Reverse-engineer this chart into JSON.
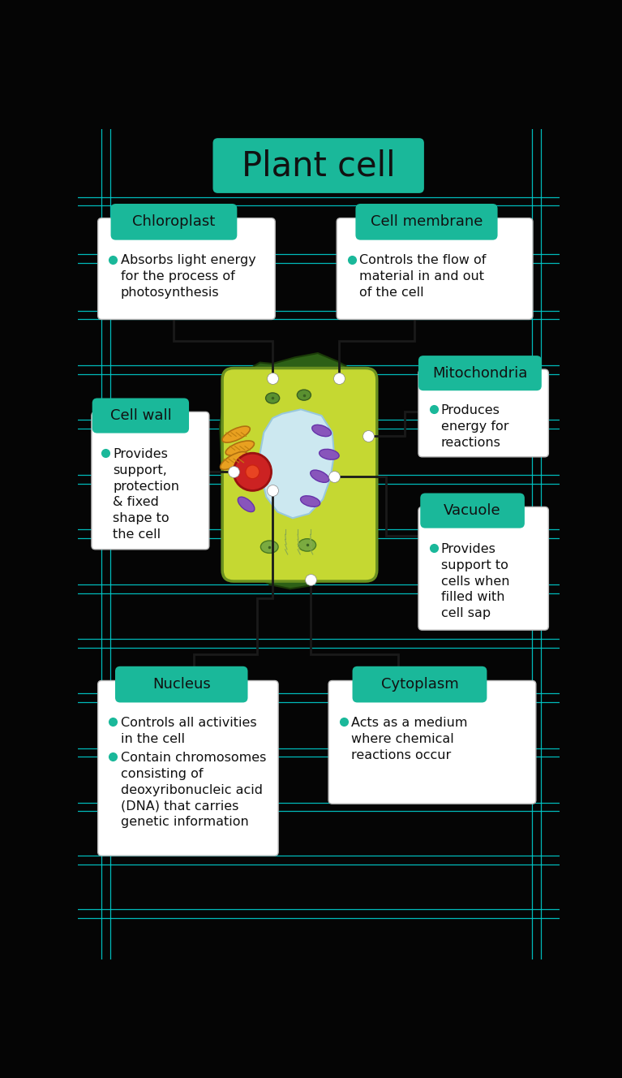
{
  "title": "Plant cell",
  "bg_color": "#050505",
  "teal_color": "#1ab89a",
  "white_box_color": "#ffffff",
  "line_color": "#111111",
  "grid_line_color": "#00cfcf",
  "text_dark": "#111111",
  "bullet_color": "#1ab89a",
  "labels": {
    "chloroplast": {
      "title": "Chloroplast",
      "bullet": "Absorbs light energy\nfor the process of\nphotosynthesis"
    },
    "cell_membrane": {
      "title": "Cell membrane",
      "bullet": "Controls the flow of\nmaterial in and out\nof the cell"
    },
    "mitochondria": {
      "title": "Mitochondria",
      "bullet": "Produces\nenergy for\nreactions"
    },
    "cell_wall": {
      "title": "Cell wall",
      "bullet": "Provides\nsupport,\nprotection\n& fixed\nshape to\nthe cell"
    },
    "vacuole": {
      "title": "Vacuole",
      "bullet": "Provides\nsupport to\ncells when\nfilled with\ncell sap"
    },
    "nucleus": {
      "title": "Nucleus",
      "bullet1": "Controls all activities\nin the cell",
      "bullet2": "Contain chromosomes\nconsisting of\ndeoxyribonucleic acid\n(DNA) that carries\ngenetic information"
    },
    "cytoplasm": {
      "title": "Cytoplasm",
      "bullet": "Acts as a medium\nwhere chemical\nreactions occur"
    }
  },
  "grid_h": [
    108,
    122,
    200,
    214,
    290,
    304,
    378,
    392,
    465,
    479,
    553,
    567,
    640,
    654,
    728,
    742,
    815,
    829,
    902,
    916,
    990,
    1004,
    1077,
    1091,
    1162,
    1176,
    1248,
    1262
  ],
  "grid_v": [
    38,
    52,
    723,
    737
  ]
}
